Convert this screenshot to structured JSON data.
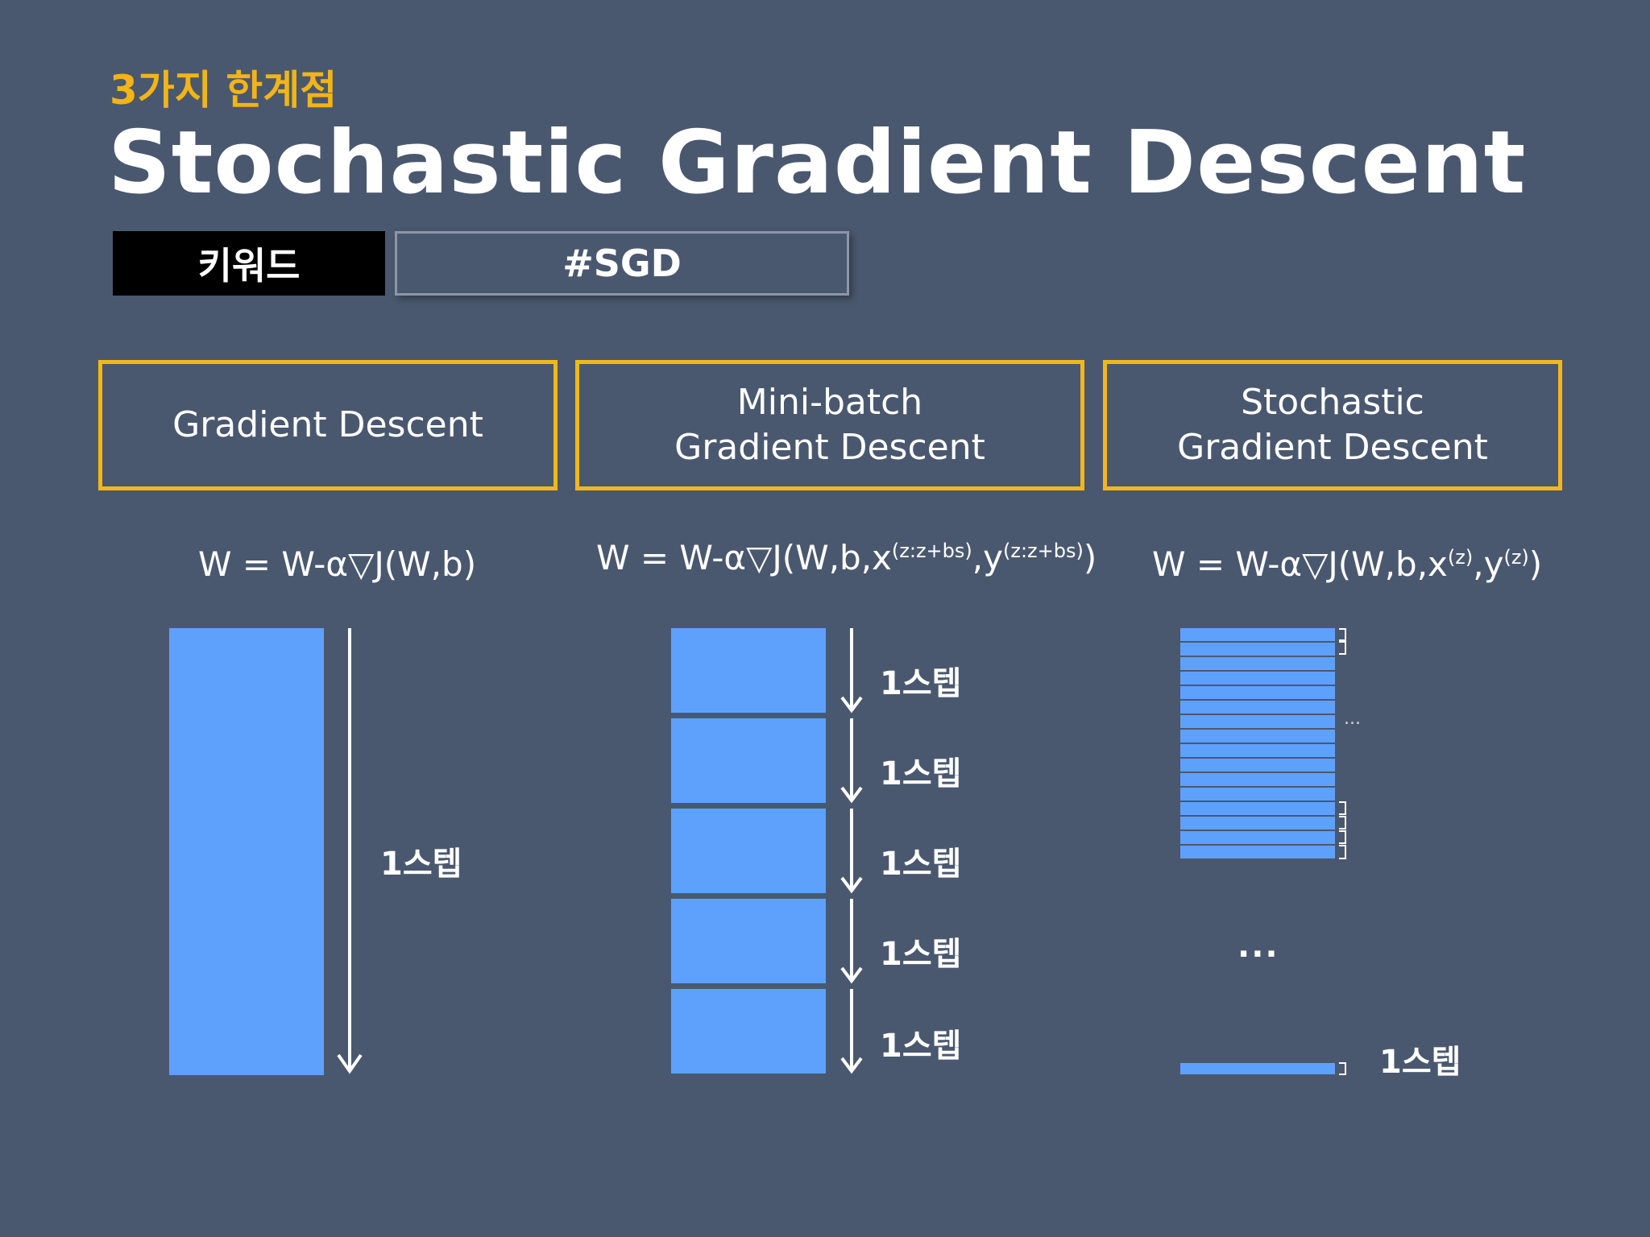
{
  "header": {
    "subtitle": "3가지 한계점",
    "title": "Stochastic Gradient Descent"
  },
  "keyword": {
    "label": "키워드",
    "value": "#SGD"
  },
  "columns": [
    {
      "heading_lines": [
        "Gradient Descent"
      ],
      "formula_main": "W = W-α▽J(W,b)"
    },
    {
      "heading_lines": [
        "Mini-batch",
        "Gradient Descent"
      ],
      "formula_main": "W = W-α▽J(W,b,x",
      "sup1": "(z:z+bs)",
      "mid": ",y",
      "sup2": "(z:z+bs)",
      "end": ")"
    },
    {
      "heading_lines": [
        "Stochastic",
        "Gradient Descent"
      ],
      "formula_main": "W = W-α▽J(W,b,x",
      "sup1": "(z)",
      "mid": ",y",
      "sup2": "(z)",
      "end": ")"
    }
  ],
  "step_label": "1스텝",
  "ellipsis_small": "...",
  "ellipsis_large": "..."
}
